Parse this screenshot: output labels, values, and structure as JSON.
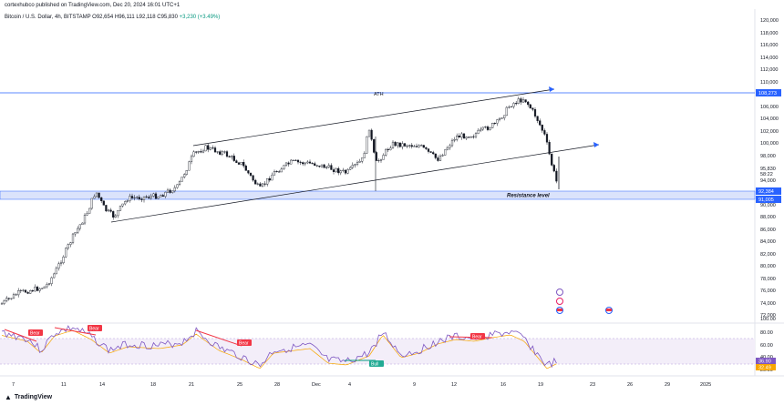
{
  "publisher": "cortexhubco published on TradingView.com, Dec 20, 2024 16:01 UTC+1",
  "legend": {
    "symbol": "Bitcoin / U.S. Dollar, 4h, BITSTAMP",
    "open": "O92,654",
    "high": "H96,111",
    "low": "L92,118",
    "close": "C95,830",
    "change": "+3,230 (+3.49%)"
  },
  "price_axis": {
    "labels": [
      "120,000",
      "118,000",
      "116,000",
      "114,000",
      "112,000",
      "110,000",
      "106,000",
      "104,000",
      "102,000",
      "100,000",
      "98,000",
      "94,000",
      "90,000",
      "88,000",
      "86,000",
      "84,000",
      "82,000",
      "80,000",
      "78,000",
      "76,000",
      "74,000",
      "72,000"
    ],
    "current_price": "95,830",
    "countdown": "58:22",
    "ath_level": "108,273",
    "zone_top": "92,384",
    "zone_bottom": "91,005"
  },
  "rsi_axis": {
    "labels": [
      "100.00",
      "80.00",
      "60.00",
      "40.00",
      "20.00"
    ],
    "rsi_value": "36.90",
    "rsi_ma": "32.49"
  },
  "time_axis": [
    "7",
    "11",
    "14",
    "18",
    "21",
    "25",
    "28",
    "Dec",
    "4",
    "9",
    "12",
    "16",
    "19",
    "23",
    "26",
    "29",
    "2025"
  ],
  "annotations": {
    "ath": "ATH",
    "resistance": "Resistance level"
  },
  "rsi_labels": [
    "Bear",
    "Bear",
    "Bear",
    "Bear",
    "Bull"
  ],
  "colors": {
    "up": "#089981",
    "down": "#f23645",
    "candle": "#131722",
    "ath_line": "#2962ff",
    "zone": "#b2c1f5",
    "rsi_line": "#7e57c2",
    "rsi_ma": "#f7a600",
    "rsi_band": "#ede7f6",
    "bear": "#f23645",
    "bull": "#22ab94"
  },
  "brand": "TradingView"
}
